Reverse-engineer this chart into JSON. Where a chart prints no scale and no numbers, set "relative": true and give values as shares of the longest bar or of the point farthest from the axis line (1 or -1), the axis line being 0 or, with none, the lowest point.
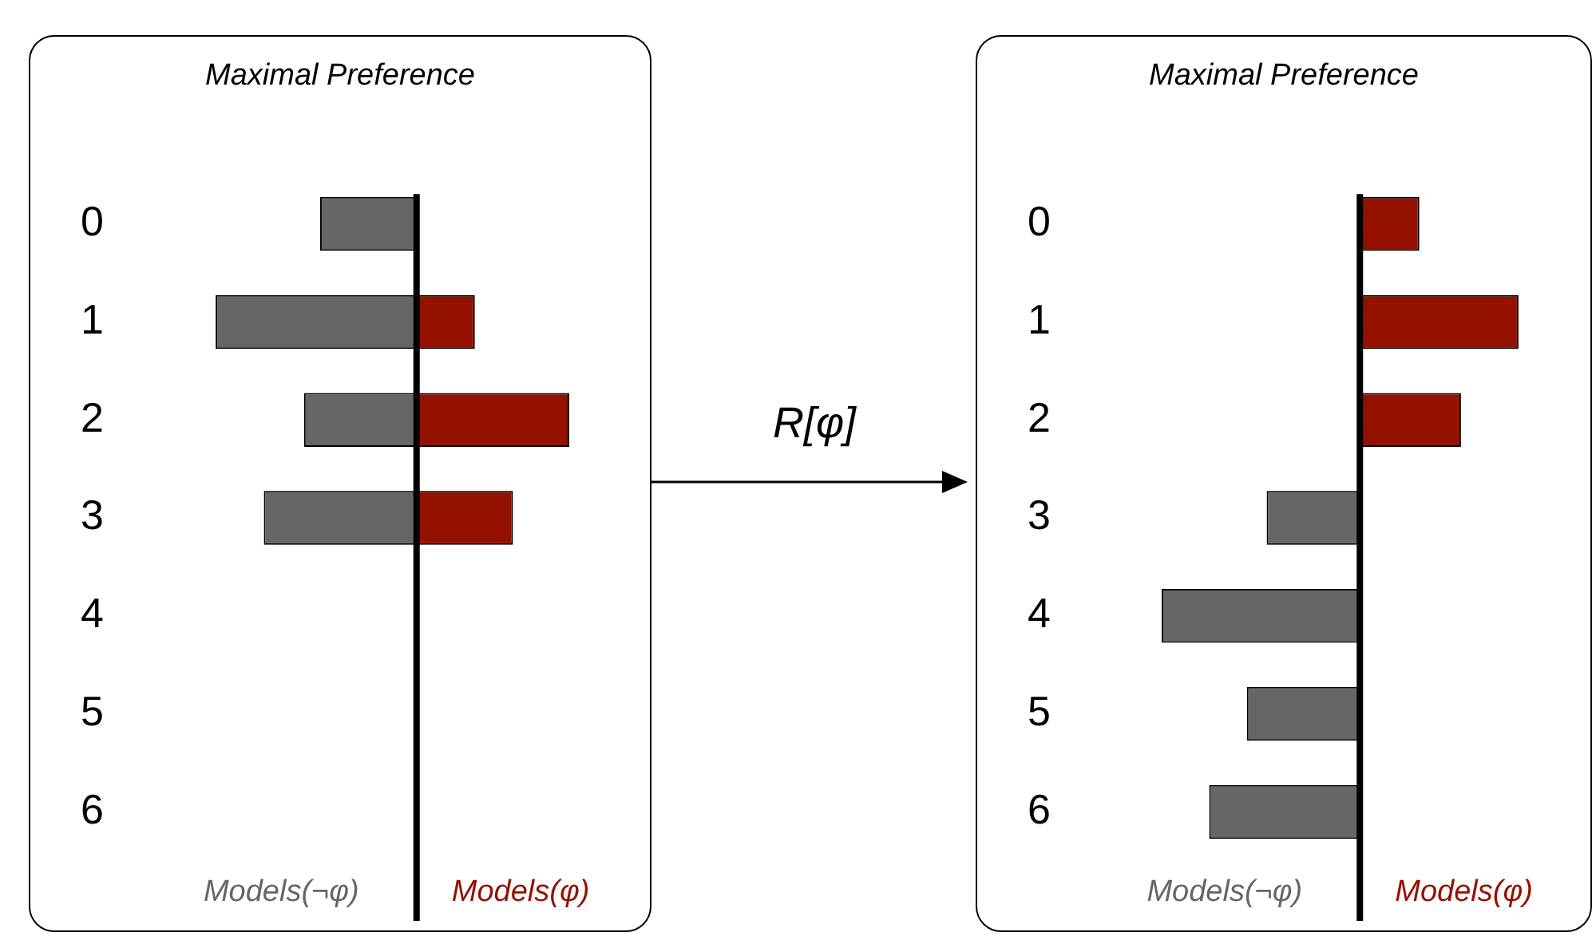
{
  "chart_data": [
    {
      "type": "bar",
      "orientation": "horizontal",
      "relative": true,
      "title": "Maximal Preference",
      "tick_labels": "y",
      "annotations": [
        "R[φ]"
      ],
      "categories": [
        "0",
        "1",
        "2",
        "3",
        "4",
        "5",
        "6"
      ],
      "series": [
        {
          "name": "Models(¬φ)",
          "color": "#666666",
          "values": [
            -0.48,
            -1,
            -0.56,
            -0.76,
            null,
            null,
            null
          ]
        },
        {
          "name": "Models(φ)",
          "color": "#941100",
          "values": [
            null,
            0.29,
            0.76,
            0.48,
            null,
            null,
            null
          ]
        }
      ]
    },
    {
      "type": "bar",
      "orientation": "horizontal",
      "relative": true,
      "title": "Maximal Preference",
      "tick_labels": "y",
      "categories": [
        "0",
        "1",
        "2",
        "3",
        "4",
        "5",
        "6"
      ],
      "series": [
        {
          "name": "Models(¬φ)",
          "color": "#666666",
          "values": [
            null,
            null,
            null,
            -0.47,
            -1,
            -0.57,
            -0.76
          ]
        },
        {
          "name": "Models(φ)",
          "color": "#941100",
          "values": [
            0.3,
            0.8,
            0.51,
            null,
            null,
            null,
            null
          ]
        }
      ]
    }
  ]
}
